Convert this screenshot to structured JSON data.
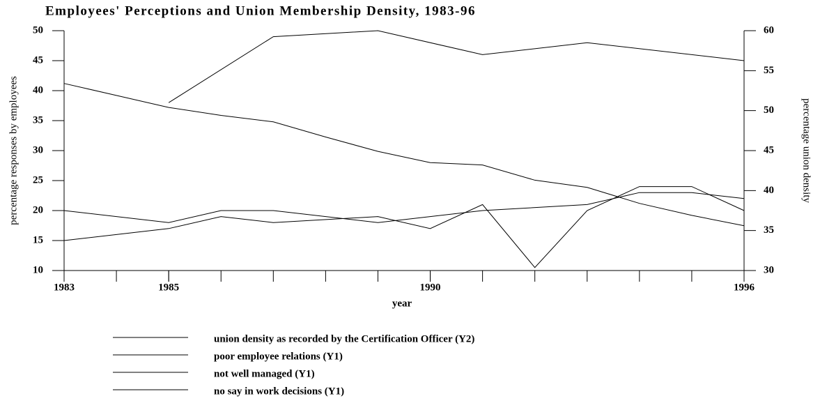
{
  "chart_data": {
    "type": "line",
    "title": "Employees' Perceptions and Union Membership Density, 1983-96",
    "xlabel": "year",
    "ylabel": "percentage responses by employees",
    "y2label": "percentage union density",
    "xlim": [
      1983,
      1996
    ],
    "xticks": [
      1983,
      1985,
      1990,
      1996
    ],
    "ylim": [
      10,
      50
    ],
    "yticks": [
      10,
      15,
      20,
      25,
      30,
      35,
      40,
      45,
      50
    ],
    "y2lim": [
      30,
      60
    ],
    "y2ticks": [
      30,
      35,
      40,
      45,
      50,
      55,
      60
    ],
    "series": [
      {
        "name": "union density as recorded by the Certification Officer (Y2)",
        "color": "#000000",
        "axis": "y2",
        "x": [
          1983,
          1984,
          1985,
          1986,
          1987,
          1988,
          1989,
          1990,
          1991,
          1992,
          1993,
          1994,
          1995,
          1996
        ],
        "values": [
          53.4,
          51.9,
          50.4,
          49.4,
          48.6,
          46.7,
          44.9,
          43.5,
          43.2,
          41.3,
          40.4,
          38.4,
          36.9,
          35.6
        ]
      },
      {
        "name": "poor employee relations (Y1)",
        "color": "#000000",
        "x": [
          1985,
          1987,
          1989,
          1991,
          1993,
          1996
        ],
        "values": [
          38,
          49,
          50,
          46,
          48,
          45
        ]
      },
      {
        "name": "not well managed (Y1)",
        "color": "#000000",
        "x": [
          1983,
          1985,
          1986,
          1987,
          1989,
          1990,
          1991,
          1993,
          1994,
          1995,
          1996
        ],
        "values": [
          20,
          18,
          20,
          20,
          18,
          19,
          20,
          21,
          23,
          23,
          22
        ]
      },
      {
        "name": "no say in work decisions (Y1)",
        "color": "#000000",
        "x": [
          1983,
          1985,
          1986,
          1987,
          1989,
          1990,
          1991,
          1992,
          1993,
          1994,
          1995,
          1996
        ],
        "values": [
          15,
          17,
          19,
          18,
          19,
          17,
          21,
          10.5,
          20,
          24,
          24,
          20
        ]
      }
    ]
  }
}
